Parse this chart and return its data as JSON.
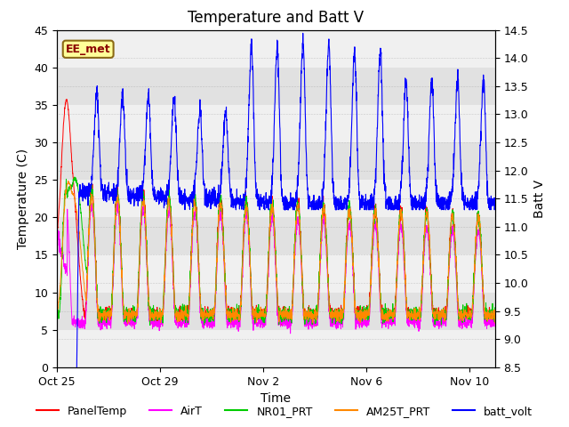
{
  "title": "Temperature and Batt V",
  "xlabel": "Time",
  "ylabel_left": "Temperature (C)",
  "ylabel_right": "Batt V",
  "annotation": "EE_met",
  "ylim_left": [
    0,
    45
  ],
  "ylim_right": [
    8.5,
    14.5
  ],
  "yticks_left": [
    0,
    5,
    10,
    15,
    20,
    25,
    30,
    35,
    40,
    45
  ],
  "yticks_right": [
    8.5,
    9.0,
    9.5,
    10.0,
    10.5,
    11.0,
    11.5,
    12.0,
    12.5,
    13.0,
    13.5,
    14.0,
    14.5
  ],
  "colors": {
    "PanelTemp": "#FF0000",
    "AirT": "#FF00FF",
    "NR01_PRT": "#00CC00",
    "AM25T_PRT": "#FF8800",
    "batt_volt": "#0000FF"
  },
  "legend_labels": [
    "PanelTemp",
    "AirT",
    "NR01_PRT",
    "AM25T_PRT",
    "batt_volt"
  ],
  "background_color": "#ffffff",
  "plot_bg_color": "#f0f0f0",
  "xtick_labels": [
    "Oct 25",
    "Oct 29",
    "Nov 2",
    "Nov 6",
    "Nov 10"
  ],
  "xtick_positions": [
    0,
    4,
    8,
    12,
    16
  ],
  "title_fontsize": 12,
  "label_fontsize": 10,
  "tick_fontsize": 9,
  "legend_fontsize": 9
}
